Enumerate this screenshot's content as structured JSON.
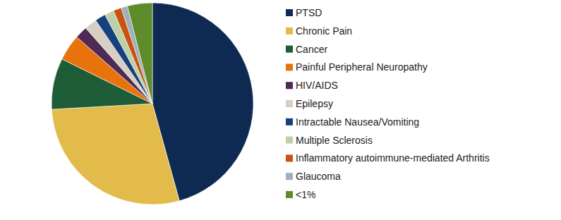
{
  "chart_data": {
    "type": "pie",
    "categories": [
      "PTSD",
      "Chronic Pain",
      "Cancer",
      "Painful Peripheral Neuropathy",
      "HIV/AIDS",
      "Epilepsy",
      "Intractable Nausea/Vomiting",
      "Multiple Sclerosis",
      "Inflammatory autoimmune-mediated Arthritis",
      "Glaucoma",
      "<1%"
    ],
    "values": [
      45.7,
      28.4,
      8.2,
      4.2,
      2.0,
      2.0,
      1.7,
      1.5,
      1.3,
      1.0,
      4.0
    ],
    "colors": [
      "#0e2a52",
      "#e3bb4b",
      "#1e5b37",
      "#e8720c",
      "#4e2a55",
      "#d8cfc4",
      "#17407d",
      "#bcd1a8",
      "#c8520f",
      "#9fafbb",
      "#5e8c2a"
    ],
    "legend": "right"
  }
}
